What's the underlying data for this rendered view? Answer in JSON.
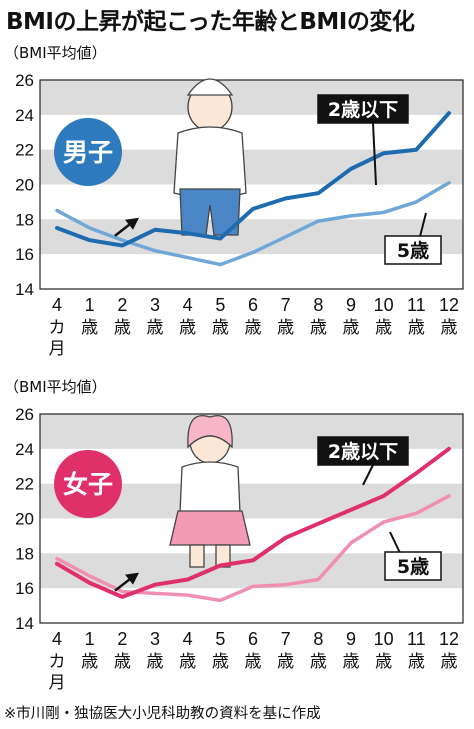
{
  "title": "BMIの上昇が起こった年齢とBMIの変化",
  "footer": "※市川剛・独協医大小児科助教の資料を基に作成",
  "colors": {
    "dark_series": "#1f6bb0",
    "light_series": "#6fa8d8",
    "girls_dark": "#e0306a",
    "girls_light": "#f090ae",
    "band": "#dcdcdc"
  },
  "chart_data": [
    {
      "type": "line",
      "ylabel": "（BMI平均値）",
      "badge": "男子",
      "badge_color": "#2e7abf",
      "ylim": [
        14,
        26
      ],
      "yticks": [
        "14",
        "16",
        "18",
        "20",
        "22",
        "24",
        "26"
      ],
      "grid": "alternating shaded bands",
      "categories": [
        "4カ月",
        "1歳",
        "2歳",
        "3歳",
        "4歳",
        "5歳",
        "6歳",
        "7歳",
        "8歳",
        "9歳",
        "10歳",
        "11歳",
        "12歳"
      ],
      "series": [
        {
          "name": "2歳以下",
          "color": "#1f6bb0",
          "values": [
            17.5,
            16.8,
            16.5,
            17.4,
            17.2,
            16.9,
            18.6,
            19.2,
            19.5,
            20.9,
            21.8,
            22.0,
            24.1
          ]
        },
        {
          "name": "5歳",
          "color": "#6fa8d8",
          "values": [
            18.5,
            17.5,
            16.8,
            16.2,
            15.8,
            15.4,
            16.1,
            17.0,
            17.9,
            18.2,
            18.4,
            19.0,
            20.1
          ]
        }
      ]
    },
    {
      "type": "line",
      "ylabel": "（BMI平均値）",
      "badge": "女子",
      "badge_color": "#e0306a",
      "ylim": [
        14,
        26
      ],
      "yticks": [
        "14",
        "16",
        "18",
        "20",
        "22",
        "24",
        "26"
      ],
      "grid": "alternating shaded bands",
      "categories": [
        "4カ月",
        "1歳",
        "2歳",
        "3歳",
        "4歳",
        "5歳",
        "6歳",
        "7歳",
        "8歳",
        "9歳",
        "10歳",
        "11歳",
        "12歳"
      ],
      "series": [
        {
          "name": "2歳以下",
          "color": "#e0306a",
          "values": [
            17.4,
            16.3,
            15.5,
            16.2,
            16.5,
            17.3,
            17.6,
            18.9,
            19.7,
            20.5,
            21.3,
            22.6,
            24.0
          ]
        },
        {
          "name": "5歳",
          "color": "#f090ae",
          "values": [
            17.7,
            16.7,
            15.8,
            15.7,
            15.6,
            15.3,
            16.1,
            16.2,
            16.5,
            18.6,
            19.8,
            20.3,
            21.3
          ]
        }
      ]
    }
  ]
}
